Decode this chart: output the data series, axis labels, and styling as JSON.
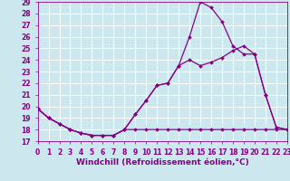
{
  "xlabel": "Windchill (Refroidissement éolien,°C)",
  "bg_color": "#cce8ee",
  "grid_color": "#ffffff",
  "line_color": "#880088",
  "x_min": 0,
  "x_max": 23,
  "y_min": 17,
  "y_max": 29,
  "line1_x": [
    0,
    1,
    2,
    3,
    4,
    5,
    6,
    7,
    8,
    9,
    10,
    11,
    12,
    13,
    14,
    15,
    16,
    17,
    18,
    19,
    20,
    21,
    22,
    23
  ],
  "line1_y": [
    19.8,
    19.0,
    18.5,
    18.0,
    17.7,
    17.5,
    17.5,
    17.5,
    18.0,
    19.3,
    20.5,
    21.8,
    22.0,
    23.5,
    26.0,
    29.0,
    28.5,
    27.3,
    25.2,
    24.5,
    24.5,
    21.0,
    18.2,
    18.0
  ],
  "line2_x": [
    0,
    1,
    2,
    3,
    4,
    5,
    6,
    7,
    8,
    9,
    10,
    11,
    12,
    13,
    14,
    15,
    16,
    17,
    18,
    19,
    20,
    21,
    22,
    23
  ],
  "line2_y": [
    19.8,
    19.0,
    18.5,
    18.0,
    17.7,
    17.5,
    17.5,
    17.5,
    18.0,
    19.3,
    20.5,
    21.8,
    22.0,
    23.5,
    24.0,
    23.5,
    23.8,
    24.2,
    24.8,
    25.2,
    24.5,
    21.0,
    18.2,
    18.0
  ],
  "line3_x": [
    0,
    1,
    2,
    3,
    4,
    5,
    6,
    7,
    8,
    9,
    10,
    11,
    12,
    13,
    14,
    15,
    16,
    17,
    18,
    19,
    20,
    21,
    22,
    23
  ],
  "line3_y": [
    19.8,
    19.0,
    18.5,
    18.0,
    17.7,
    17.5,
    17.5,
    17.5,
    18.0,
    18.0,
    18.0,
    18.0,
    18.0,
    18.0,
    18.0,
    18.0,
    18.0,
    18.0,
    18.0,
    18.0,
    18.0,
    18.0,
    18.0,
    18.0
  ],
  "xticks": [
    0,
    1,
    2,
    3,
    4,
    5,
    6,
    7,
    8,
    9,
    10,
    11,
    12,
    13,
    14,
    15,
    16,
    17,
    18,
    19,
    20,
    21,
    22,
    23
  ],
  "yticks": [
    17,
    18,
    19,
    20,
    21,
    22,
    23,
    24,
    25,
    26,
    27,
    28,
    29
  ],
  "tick_label_size": 5.5,
  "xlabel_size": 6.5,
  "marker": "D",
  "marker_size": 2.0,
  "line_width": 0.9
}
